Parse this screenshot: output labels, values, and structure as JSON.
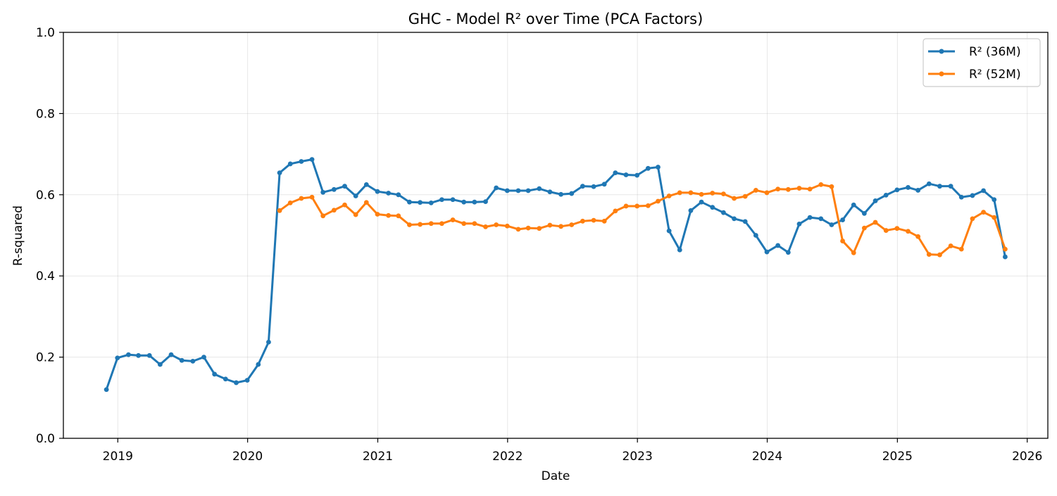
{
  "chart_data": {
    "type": "line",
    "title": "GHC - Model R² over Time (PCA Factors)",
    "xlabel": "Date",
    "ylabel": "R-squared",
    "xlim": [
      "2018-08-01",
      "2026-02-28"
    ],
    "ylim": [
      0,
      1
    ],
    "x_ticks": [
      "2019-01-01",
      "2020-01-01",
      "2021-01-01",
      "2022-01-01",
      "2023-01-01",
      "2024-01-01",
      "2025-01-01",
      "2026-01-01"
    ],
    "x_tick_labels": [
      "2019",
      "2020",
      "2021",
      "2022",
      "2023",
      "2024",
      "2025",
      "2026"
    ],
    "y_ticks": [
      0.0,
      0.2,
      0.4,
      0.6,
      0.8,
      1.0
    ],
    "y_tick_labels": [
      "0.0",
      "0.2",
      "0.4",
      "0.6",
      "0.8",
      "1.0"
    ],
    "grid": true,
    "legend_position": "top-right",
    "series": [
      {
        "name": "R² (36M)",
        "color": "#1f77b4",
        "x": [
          "2018-11-30",
          "2018-12-31",
          "2019-01-31",
          "2019-02-28",
          "2019-03-31",
          "2019-04-30",
          "2019-05-31",
          "2019-06-30",
          "2019-07-31",
          "2019-08-31",
          "2019-09-30",
          "2019-10-31",
          "2019-11-30",
          "2019-12-31",
          "2020-01-31",
          "2020-02-29",
          "2020-03-31",
          "2020-04-30",
          "2020-05-31",
          "2020-06-30",
          "2020-07-31",
          "2020-08-31",
          "2020-09-30",
          "2020-10-31",
          "2020-11-30",
          "2020-12-31",
          "2021-01-31",
          "2021-02-28",
          "2021-03-31",
          "2021-04-30",
          "2021-05-31",
          "2021-06-30",
          "2021-07-31",
          "2021-08-31",
          "2021-09-30",
          "2021-10-31",
          "2021-11-30",
          "2021-12-31",
          "2022-01-31",
          "2022-02-28",
          "2022-03-31",
          "2022-04-30",
          "2022-05-31",
          "2022-06-30",
          "2022-07-31",
          "2022-08-31",
          "2022-09-30",
          "2022-10-31",
          "2022-11-30",
          "2022-12-31",
          "2023-01-31",
          "2023-02-28",
          "2023-03-31",
          "2023-04-30",
          "2023-05-31",
          "2023-06-30",
          "2023-07-31",
          "2023-08-31",
          "2023-09-30",
          "2023-10-31",
          "2023-11-30",
          "2023-12-31",
          "2024-01-31",
          "2024-02-29",
          "2024-03-31",
          "2024-04-30",
          "2024-05-31",
          "2024-06-30",
          "2024-07-31",
          "2024-08-31",
          "2024-09-30",
          "2024-10-31",
          "2024-11-30",
          "2024-12-31",
          "2025-01-31",
          "2025-02-28",
          "2025-03-31",
          "2025-04-30",
          "2025-05-31",
          "2025-06-30",
          "2025-07-31",
          "2025-08-31",
          "2025-09-30",
          "2025-10-31"
        ],
        "values": [
          0.12,
          0.198,
          0.206,
          0.204,
          0.204,
          0.182,
          0.206,
          0.192,
          0.19,
          0.2,
          0.158,
          0.146,
          0.137,
          0.143,
          0.182,
          0.237,
          0.654,
          0.676,
          0.682,
          0.687,
          0.606,
          0.613,
          0.621,
          0.597,
          0.625,
          0.608,
          0.604,
          0.6,
          0.582,
          0.581,
          0.58,
          0.588,
          0.588,
          0.582,
          0.582,
          0.583,
          0.617,
          0.61,
          0.61,
          0.61,
          0.615,
          0.607,
          0.601,
          0.603,
          0.621,
          0.62,
          0.626,
          0.654,
          0.649,
          0.648,
          0.665,
          0.668,
          0.511,
          0.464,
          0.561,
          0.582,
          0.569,
          0.556,
          0.541,
          0.534,
          0.5,
          0.459,
          0.475,
          0.458,
          0.528,
          0.544,
          0.541,
          0.526,
          0.538,
          0.575,
          0.554,
          0.585,
          0.599,
          0.612,
          0.618,
          0.611,
          0.627,
          0.621,
          0.621,
          0.594,
          0.598,
          0.61,
          0.588,
          0.447
        ]
      },
      {
        "name": "R² (52M)",
        "color": "#ff7f0e",
        "x": [
          "2020-03-31",
          "2020-04-30",
          "2020-05-31",
          "2020-06-30",
          "2020-07-31",
          "2020-08-31",
          "2020-09-30",
          "2020-10-31",
          "2020-11-30",
          "2020-12-31",
          "2021-01-31",
          "2021-02-28",
          "2021-03-31",
          "2021-04-30",
          "2021-05-31",
          "2021-06-30",
          "2021-07-31",
          "2021-08-31",
          "2021-09-30",
          "2021-10-31",
          "2021-11-30",
          "2021-12-31",
          "2022-01-31",
          "2022-02-28",
          "2022-03-31",
          "2022-04-30",
          "2022-05-31",
          "2022-06-30",
          "2022-07-31",
          "2022-08-31",
          "2022-09-30",
          "2022-10-31",
          "2022-11-30",
          "2022-12-31",
          "2023-01-31",
          "2023-02-28",
          "2023-03-31",
          "2023-04-30",
          "2023-05-31",
          "2023-06-30",
          "2023-07-31",
          "2023-08-31",
          "2023-09-30",
          "2023-10-31",
          "2023-11-30",
          "2023-12-31",
          "2024-01-31",
          "2024-02-29",
          "2024-03-31",
          "2024-04-30",
          "2024-05-31",
          "2024-06-30",
          "2024-07-31",
          "2024-08-31",
          "2024-09-30",
          "2024-10-31",
          "2024-11-30",
          "2024-12-31",
          "2025-01-31",
          "2025-02-28",
          "2025-03-31",
          "2025-04-30",
          "2025-05-31",
          "2025-06-30",
          "2025-07-31",
          "2025-08-31",
          "2025-09-30",
          "2025-10-31"
        ],
        "values": [
          0.561,
          0.58,
          0.591,
          0.594,
          0.548,
          0.562,
          0.575,
          0.551,
          0.581,
          0.552,
          0.549,
          0.548,
          0.526,
          0.527,
          0.529,
          0.529,
          0.538,
          0.529,
          0.529,
          0.521,
          0.526,
          0.523,
          0.515,
          0.518,
          0.517,
          0.525,
          0.522,
          0.526,
          0.535,
          0.537,
          0.535,
          0.56,
          0.572,
          0.572,
          0.573,
          0.584,
          0.597,
          0.605,
          0.605,
          0.601,
          0.604,
          0.602,
          0.591,
          0.596,
          0.611,
          0.605,
          0.614,
          0.613,
          0.616,
          0.614,
          0.625,
          0.62,
          0.486,
          0.457,
          0.518,
          0.532,
          0.512,
          0.517,
          0.51,
          0.497,
          0.453,
          0.452,
          0.474,
          0.466,
          0.541,
          0.557,
          0.544,
          0.466
        ]
      }
    ]
  }
}
